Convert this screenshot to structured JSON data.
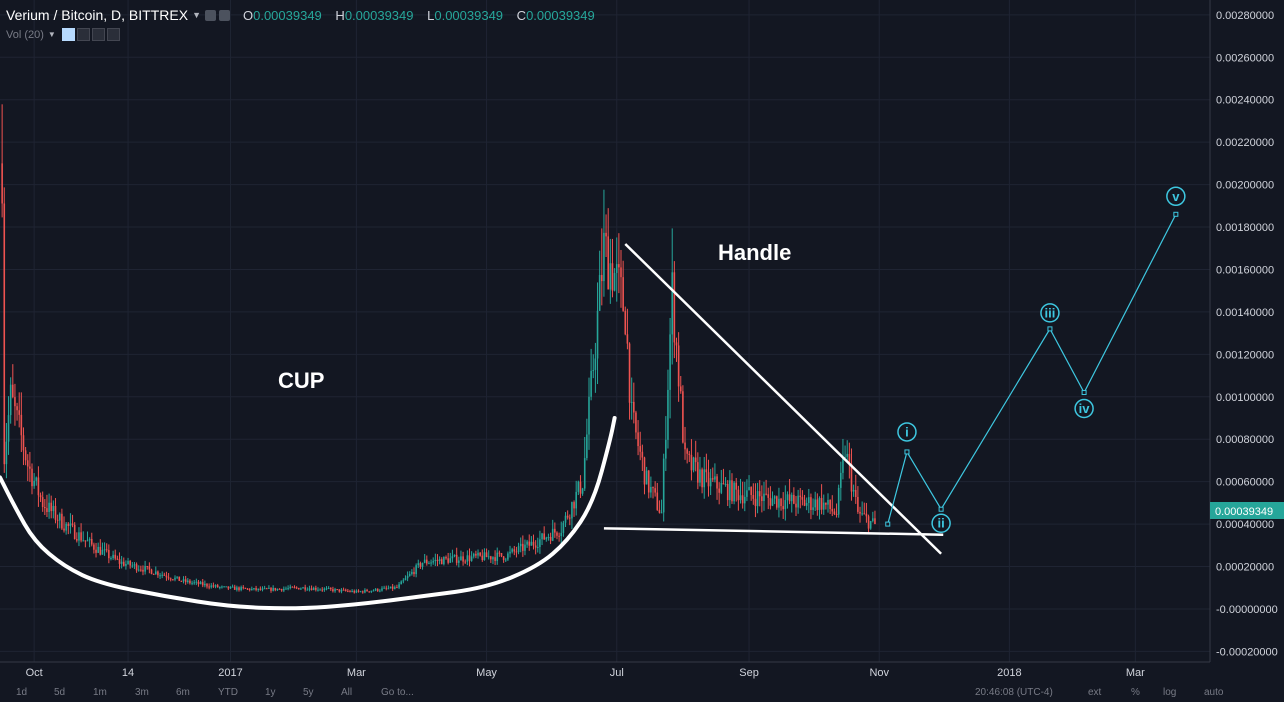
{
  "header": {
    "symbol_title": "Verium / Bitcoin, D, BITTREX",
    "ohlc": [
      {
        "key": "O",
        "value": "0.00039349"
      },
      {
        "key": "H",
        "value": "0.00039349"
      },
      {
        "key": "L",
        "value": "0.00039349"
      },
      {
        "key": "C",
        "value": "0.00039349"
      }
    ]
  },
  "volume_indicator": {
    "label": "Vol (20)"
  },
  "price_axis": {
    "ticks": [
      "0.00280000",
      "0.00260000",
      "0.00240000",
      "0.00220000",
      "0.00200000",
      "0.00180000",
      "0.00160000",
      "0.00140000",
      "0.00120000",
      "0.00100000",
      "0.00080000",
      "0.00060000",
      "0.00040000",
      "0.00020000",
      "-0.00000000",
      "-0.00020000"
    ],
    "last_price_label": "0.00039349",
    "last_price_color": "#26a69a"
  },
  "time_axis": {
    "ticks": [
      "Oct",
      "14",
      "2017",
      "Mar",
      "May",
      "Jul",
      "Sep",
      "Nov",
      "2018",
      "Mar"
    ]
  },
  "bottom_toolbar": {
    "ranges": [
      "1d",
      "5d",
      "1m",
      "3m",
      "6m",
      "YTD",
      "1y",
      "5y",
      "All",
      "Go to..."
    ],
    "clock": "20:46:08 (UTC-4)",
    "options": [
      "ext",
      "%",
      "log",
      "auto"
    ]
  },
  "annotations": {
    "cup_label": "CUP",
    "handle_label": "Handle",
    "waves": [
      "i",
      "ii",
      "iii",
      "iv",
      "v"
    ]
  },
  "colors": {
    "background": "#131722",
    "up_candle": "#26a69a",
    "down_candle": "#ef5350",
    "wave_line": "#3ec7e0",
    "annotation": "#ffffff",
    "grid": "#1f2433"
  },
  "chart_data": {
    "type": "candlestick",
    "grid": true,
    "price_range": [
      -0.00025,
      0.00287
    ],
    "date_range": [
      "2016-09-15",
      "2018-04-05"
    ],
    "price_series": [
      {
        "date": "2016-09-16",
        "price": 0.0021
      },
      {
        "date": "2016-09-17",
        "price": 0.00072
      },
      {
        "date": "2016-09-20",
        "price": 0.001
      },
      {
        "date": "2016-09-24",
        "price": 0.00085
      },
      {
        "date": "2016-09-28",
        "price": 0.00068
      },
      {
        "date": "2016-10-05",
        "price": 0.0005
      },
      {
        "date": "2016-10-15",
        "price": 0.0004
      },
      {
        "date": "2016-10-28",
        "price": 0.0003
      },
      {
        "date": "2016-11-10",
        "price": 0.00022
      },
      {
        "date": "2016-11-25",
        "price": 0.00018
      },
      {
        "date": "2016-12-10",
        "price": 0.00013
      },
      {
        "date": "2016-12-28",
        "price": 0.0001
      },
      {
        "date": "2017-01-15",
        "price": 9e-05
      },
      {
        "date": "2017-02-05",
        "price": 0.0001
      },
      {
        "date": "2017-03-01",
        "price": 8e-05
      },
      {
        "date": "2017-03-20",
        "price": 0.0001
      },
      {
        "date": "2017-04-01",
        "price": 0.00022
      },
      {
        "date": "2017-04-20",
        "price": 0.00024
      },
      {
        "date": "2017-05-10",
        "price": 0.00025
      },
      {
        "date": "2017-05-25",
        "price": 0.00032
      },
      {
        "date": "2017-06-05",
        "price": 0.00038
      },
      {
        "date": "2017-06-15",
        "price": 0.0006
      },
      {
        "date": "2017-06-25",
        "price": 0.0017
      },
      {
        "date": "2017-07-01",
        "price": 0.00155
      },
      {
        "date": "2017-07-05",
        "price": 0.0014
      },
      {
        "date": "2017-07-08",
        "price": 0.0009
      },
      {
        "date": "2017-07-15",
        "price": 0.0006
      },
      {
        "date": "2017-07-22",
        "price": 0.00045
      },
      {
        "date": "2017-07-27",
        "price": 0.0015
      },
      {
        "date": "2017-08-02",
        "price": 0.0007
      },
      {
        "date": "2017-08-12",
        "price": 0.0006
      },
      {
        "date": "2017-08-25",
        "price": 0.00055
      },
      {
        "date": "2017-09-10",
        "price": 0.00052
      },
      {
        "date": "2017-09-25",
        "price": 0.0005
      },
      {
        "date": "2017-10-05",
        "price": 0.0005
      },
      {
        "date": "2017-10-12",
        "price": 0.00045
      },
      {
        "date": "2017-10-16",
        "price": 0.00075
      },
      {
        "date": "2017-10-22",
        "price": 0.00045
      },
      {
        "date": "2017-10-30",
        "price": 0.00039349
      }
    ],
    "annotations": [
      {
        "type": "curve",
        "name": "cup",
        "points": [
          {
            "date": "2016-09-15",
            "price": 0.00062
          },
          {
            "date": "2016-09-22",
            "price": 0.00048
          },
          {
            "date": "2016-10-01",
            "price": 0.00032
          },
          {
            "date": "2016-10-15",
            "price": 0.0002
          },
          {
            "date": "2016-11-01",
            "price": 0.00012
          },
          {
            "date": "2016-12-01",
            "price": 6e-05
          },
          {
            "date": "2017-01-01",
            "price": 1e-05
          },
          {
            "date": "2017-02-01",
            "price": 0.0
          },
          {
            "date": "2017-03-01",
            "price": 2e-05
          },
          {
            "date": "2017-04-01",
            "price": 6e-05
          },
          {
            "date": "2017-05-01",
            "price": 0.0001
          },
          {
            "date": "2017-05-25",
            "price": 0.0002
          },
          {
            "date": "2017-06-08",
            "price": 0.00032
          },
          {
            "date": "2017-06-20",
            "price": 0.0005
          },
          {
            "date": "2017-06-28",
            "price": 0.0008
          },
          {
            "date": "2017-06-30",
            "price": 0.0009
          }
        ]
      },
      {
        "type": "trendline",
        "name": "handle-upper",
        "from": {
          "date": "2017-07-05",
          "price": 0.00172
        },
        "to": {
          "date": "2017-11-30",
          "price": 0.00026
        }
      },
      {
        "type": "trendline",
        "name": "handle-lower",
        "from": {
          "date": "2017-06-25",
          "price": 0.00038
        },
        "to": {
          "date": "2017-12-01",
          "price": 0.00035
        }
      },
      {
        "type": "wave",
        "name": "elliott-projection",
        "points": [
          {
            "date": "2017-11-05",
            "price": 0.0004,
            "label": ""
          },
          {
            "date": "2017-11-14",
            "price": 0.00074,
            "label": "i"
          },
          {
            "date": "2017-11-30",
            "price": 0.00047,
            "label": "ii"
          },
          {
            "date": "2018-01-20",
            "price": 0.00132,
            "label": "iii"
          },
          {
            "date": "2018-02-05",
            "price": 0.00102,
            "label": "iv"
          },
          {
            "date": "2018-03-20",
            "price": 0.00186,
            "label": "v"
          }
        ]
      }
    ]
  }
}
